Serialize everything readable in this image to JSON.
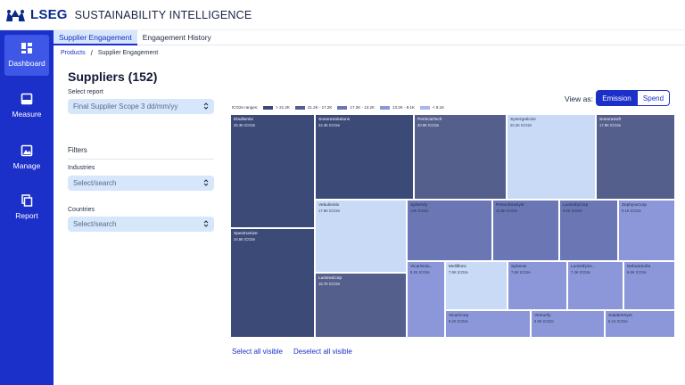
{
  "header": {
    "logo_text": "LSEG",
    "app_title": "SUSTAINABILITY INTELLIGENCE"
  },
  "sidebar": {
    "items": [
      {
        "label": "Dashboard",
        "icon": "dashboard-icon",
        "active": true
      },
      {
        "label": "Measure",
        "icon": "measure-icon",
        "active": false
      },
      {
        "label": "Manage",
        "icon": "manage-icon",
        "active": false
      },
      {
        "label": "Report",
        "icon": "report-icon",
        "active": false
      }
    ]
  },
  "tabs": [
    {
      "label": "Supplier Engagement",
      "active": true
    },
    {
      "label": "Engagement History",
      "active": false
    }
  ],
  "breadcrumb": {
    "root": "Products",
    "current": "Supplier Engagement"
  },
  "page": {
    "title": "Suppliers (152)"
  },
  "report": {
    "label": "Select report",
    "value": "Final Supplier Scope 3 dd/mm/yy"
  },
  "filters": {
    "title": "Filters",
    "industries_label": "Industries",
    "industries_placeholder": "Select/search",
    "countries_label": "Countries",
    "countries_placeholder": "Select/search"
  },
  "legend": {
    "title": "tCO2e ranges:",
    "items": [
      {
        "label": "> 21.2K",
        "color": "#3c4a78"
      },
      {
        "label": "21.2K - 17.2K",
        "color": "#555f8c"
      },
      {
        "label": "17.2K - 13.2K",
        "color": "#6b76b4"
      },
      {
        "label": "13.2K - 9.1K",
        "color": "#8c97d9"
      },
      {
        "label": "< 9.1K",
        "color": "#a9b6ee"
      }
    ]
  },
  "view_as": {
    "label": "View as:",
    "options": [
      "Emission",
      "Spend"
    ],
    "selected": "Emission"
  },
  "treemap": {
    "cells": [
      {
        "name": "Ebullientix",
        "value": "25.3K tCO2e"
      },
      {
        "name": "SonoraSolutions",
        "value": "22.4K tCO2e"
      },
      {
        "name": "PerniciaTech",
        "value": "20.9K tCO2e"
      },
      {
        "name": "Synergeticize",
        "value": "20.2K tCO2e"
      },
      {
        "name": "SonoraSoft",
        "value": "17.9K tCO2e"
      },
      {
        "name": "Spectrumize",
        "value": "24.5K tCO2e"
      },
      {
        "name": "Vebulientix",
        "value": "17.9K tCO2e"
      },
      {
        "name": "Spherefy",
        "value": "14K tCO2e"
      },
      {
        "name": "PenumbraSyst",
        "value": "10.8K tCO2e"
      },
      {
        "name": "LuminifyCorp",
        "value": "9.5K tCO2e"
      },
      {
        "name": "ZephyraCorp",
        "value": "9.1K tCO2e"
      },
      {
        "name": "LuminaCorp",
        "value": "15.7K tCO2e"
      },
      {
        "name": "VicariSolu...",
        "value": "8.2K tCO2e"
      },
      {
        "name": "Mellifloric",
        "value": "7.8K tCO2e"
      },
      {
        "name": "Sphenix",
        "value": "7.8K tCO2e"
      },
      {
        "name": "LuminifySo...",
        "value": "7.3K tCO2e"
      },
      {
        "name": "NebulaSofia",
        "value": "6.9K tCO2e"
      },
      {
        "name": "VicariCorp",
        "value": "6.2K tCO2e"
      },
      {
        "name": "Venturify",
        "value": "5.9K tCO2e"
      },
      {
        "name": "SalubrisSyst",
        "value": "5.1K tCO2e"
      }
    ]
  },
  "actions": {
    "select_all": "Select all visible",
    "deselect_all": "Deselect all visible"
  }
}
